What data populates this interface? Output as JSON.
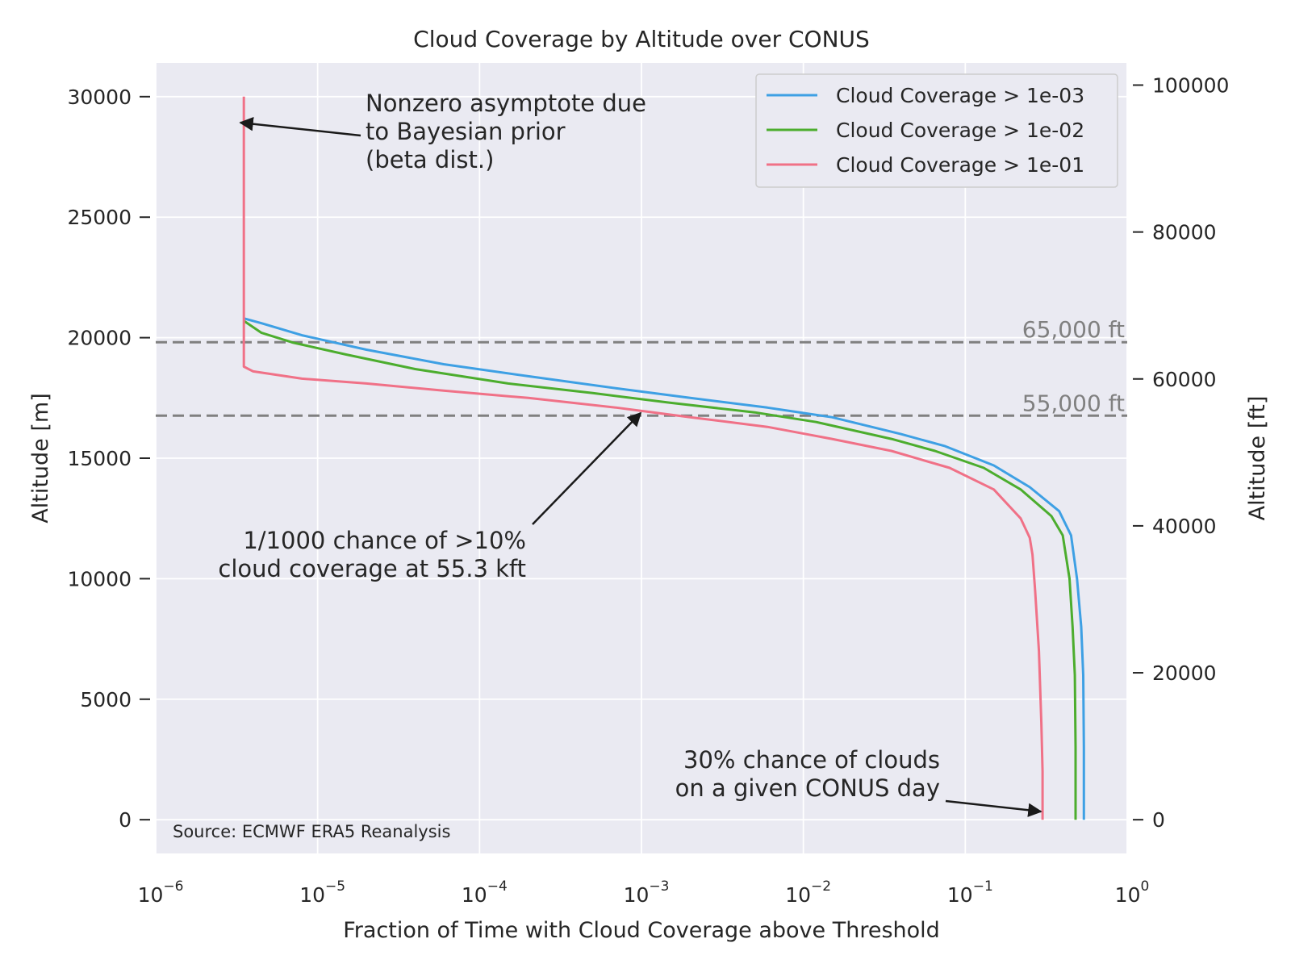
{
  "chart_data": {
    "type": "line",
    "title": "Cloud Coverage by Altitude over CONUS",
    "xlabel": "Fraction of Time with Cloud Coverage above Threshold",
    "ylabel": "Altitude [m]",
    "ylabel_right": "Altitude [ft]",
    "xscale": "log",
    "xlim": [
      1e-06,
      1
    ],
    "ylim": [
      -1400,
      31400
    ],
    "ylim_right_ft": [
      -4593,
      103018
    ],
    "grid": true,
    "legend_position": "top-right",
    "x_ticks": [
      {
        "base": "10",
        "exp": "−6",
        "value": 1e-06
      },
      {
        "base": "10",
        "exp": "−5",
        "value": 1e-05
      },
      {
        "base": "10",
        "exp": "−4",
        "value": 0.0001
      },
      {
        "base": "10",
        "exp": "−3",
        "value": 0.001
      },
      {
        "base": "10",
        "exp": "−2",
        "value": 0.01
      },
      {
        "base": "10",
        "exp": "−1",
        "value": 0.1
      },
      {
        "base": "10",
        "exp": "0",
        "value": 1
      }
    ],
    "y_ticks": [
      "0",
      "5000",
      "10000",
      "15000",
      "20000",
      "25000",
      "30000"
    ],
    "y_ticks_right": [
      "0",
      "20000",
      "40000",
      "60000",
      "80000",
      "100000"
    ],
    "series": [
      {
        "name": "Cloud Coverage > 1e-03",
        "color": "#3ea0e4",
        "points": [
          [
            0.54,
            0
          ],
          [
            0.54,
            3000
          ],
          [
            0.535,
            6000
          ],
          [
            0.52,
            8000
          ],
          [
            0.49,
            10000
          ],
          [
            0.45,
            11800
          ],
          [
            0.38,
            12800
          ],
          [
            0.25,
            13800
          ],
          [
            0.15,
            14700
          ],
          [
            0.075,
            15500
          ],
          [
            0.04,
            16000
          ],
          [
            0.015,
            16700
          ],
          [
            0.006,
            17100
          ],
          [
            0.002,
            17500
          ],
          [
            0.0007,
            17900
          ],
          [
            0.0002,
            18400
          ],
          [
            6e-05,
            18900
          ],
          [
            2e-05,
            19500
          ],
          [
            8e-06,
            20100
          ],
          [
            4.5e-06,
            20600
          ],
          [
            3.5e-06,
            20800
          ]
        ]
      },
      {
        "name": "Cloud Coverage > 1e-02",
        "color": "#4cad2e",
        "points": [
          [
            0.48,
            0
          ],
          [
            0.48,
            3000
          ],
          [
            0.475,
            6000
          ],
          [
            0.46,
            8000
          ],
          [
            0.44,
            10000
          ],
          [
            0.4,
            11800
          ],
          [
            0.34,
            12600
          ],
          [
            0.22,
            13700
          ],
          [
            0.13,
            14600
          ],
          [
            0.065,
            15300
          ],
          [
            0.035,
            15800
          ],
          [
            0.012,
            16500
          ],
          [
            0.005,
            16900
          ],
          [
            0.0015,
            17300
          ],
          [
            0.0005,
            17700
          ],
          [
            0.00015,
            18100
          ],
          [
            4e-05,
            18700
          ],
          [
            1.5e-05,
            19300
          ],
          [
            7e-06,
            19800
          ],
          [
            4.5e-06,
            20200
          ],
          [
            3.5e-06,
            20700
          ]
        ]
      },
      {
        "name": "Cloud Coverage > 1e-01",
        "color": "#f07187",
        "points": [
          [
            0.3,
            0
          ],
          [
            0.3,
            2000
          ],
          [
            0.295,
            4000
          ],
          [
            0.285,
            7000
          ],
          [
            0.27,
            9500
          ],
          [
            0.26,
            11000
          ],
          [
            0.25,
            11700
          ],
          [
            0.22,
            12500
          ],
          [
            0.15,
            13700
          ],
          [
            0.08,
            14600
          ],
          [
            0.035,
            15300
          ],
          [
            0.015,
            15800
          ],
          [
            0.006,
            16300
          ],
          [
            0.002,
            16700
          ],
          [
            0.0007,
            17100
          ],
          [
            0.0002,
            17500
          ],
          [
            6e-05,
            17800
          ],
          [
            2e-05,
            18100
          ],
          [
            8e-06,
            18300
          ],
          [
            4e-06,
            18600
          ],
          [
            3.5e-06,
            18800
          ],
          [
            3.5e-06,
            30000
          ]
        ]
      }
    ],
    "reference_lines": [
      {
        "label": "65,000 ft",
        "altitude_m": 19812,
        "color": "#808080"
      },
      {
        "label": "55,000 ft",
        "altitude_m": 16764,
        "color": "#808080"
      }
    ],
    "annotations": [
      {
        "lines": [
          "Nonzero asymptote due",
          "to Bayesian prior",
          "(beta dist.)"
        ],
        "target": [
          3.5e-06,
          29000
        ]
      },
      {
        "lines": [
          "1/1000 chance of >10%",
          "cloud coverage at 55.3 kft"
        ],
        "target": [
          0.001,
          16850
        ]
      },
      {
        "lines": [
          "30% chance of clouds",
          "on a given CONUS day"
        ],
        "target": [
          0.29,
          300
        ]
      }
    ],
    "source_note": "Source: ECMWF ERA5 Reanalysis"
  }
}
